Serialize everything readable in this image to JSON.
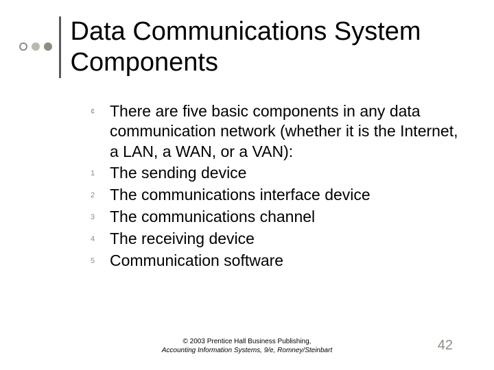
{
  "accent_dots": {
    "hollow_border": "#8a8f82",
    "solid1": "#b7bdae",
    "solid2": "#8a8f82"
  },
  "title": "Data Communications System Components",
  "intro_bullet_marker": "¢",
  "intro": "There are five basic components in any data communication network (whether it is the Internet, a LAN, a WAN, or a VAN):",
  "items": [
    {
      "num": "1",
      "text": "The sending device"
    },
    {
      "num": "2",
      "text": "The communications interface device"
    },
    {
      "num": "3",
      "text": "The communications channel"
    },
    {
      "num": "4",
      "text": "The receiving device"
    },
    {
      "num": "5",
      "text": "Communication software"
    }
  ],
  "footer_line1": "© 2003 Prentice Hall Business Publishing,",
  "footer_line2": "Accounting Information Systems, 9/e, Romney/Steinbart",
  "page_number": "42"
}
